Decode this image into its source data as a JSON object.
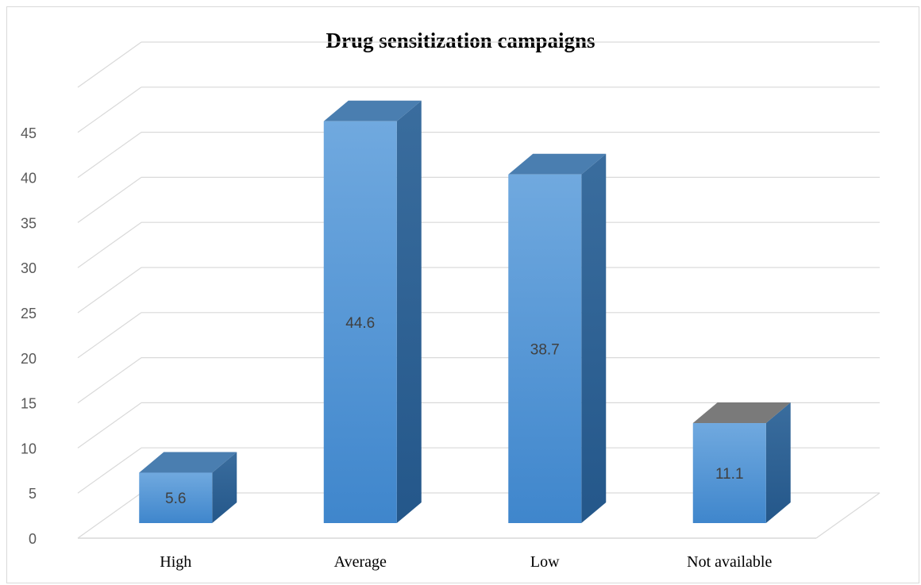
{
  "chart_data": {
    "type": "bar",
    "title": "Drug sensitization campaigns",
    "categories": [
      "High",
      "Average",
      "Low",
      "Not available"
    ],
    "series": [
      {
        "values": [
          5.6,
          44.6,
          38.7,
          11.1
        ]
      }
    ],
    "data_labels": [
      "5.6",
      "44.6",
      "38.7",
      "11.1"
    ],
    "yticks": [
      "0",
      "5",
      "10",
      "15",
      "20",
      "25",
      "30",
      "35",
      "40",
      "45"
    ],
    "ylim": [
      0,
      50
    ],
    "xlabel": "",
    "ylabel": "",
    "grid": true,
    "legend": "none",
    "style": "3d-column",
    "colors": {
      "bar_front": "#5b9bd5",
      "bar_front_light": "#70a9df",
      "bar_front_dark": "#3f86cc",
      "bar_side": "#2e5f8f",
      "bar_top": "#4a7eb0",
      "bar_top_last": "#7a7a7a",
      "grid": "#d9d9d9"
    }
  }
}
